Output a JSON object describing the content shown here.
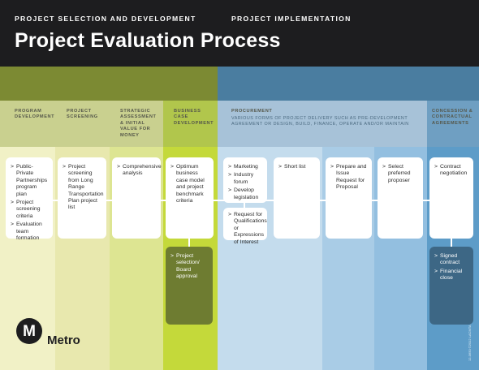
{
  "title": "Project Evaluation Process",
  "sections": {
    "selection": "PROJECT SELECTION AND DEVELOPMENT",
    "implementation": "PROJECT IMPLEMENTATION"
  },
  "columns": {
    "program_development": "PROGRAM DEVELOPMENT",
    "project_screening": "PROJECT SCREENING",
    "strategic_assessment": "STRATEGIC ASSESSMENT & INITIAL VALUE FOR MONEY",
    "business_case": "BUSINESS CASE DEVELOPMENT",
    "procurement": "PROCUREMENT",
    "procurement_sub": "VARIOUS FORMS OF PROJECT DELIVERY SUCH AS PRE-DEVELOPMENT AGREEMENT OR DESIGN, BUILD, FINANCE, OPERATE AND/OR MAINTAIN",
    "concession": "CONCESSION & CONTRACTUAL AGREEMENTS"
  },
  "arrow": ">",
  "steps": {
    "program": [
      "Public-Private Partnerships program plan",
      "Project screening criteria",
      "Evaluation team formation"
    ],
    "screening": [
      "Project screening from Long Range Transportation Plan project list"
    ],
    "strategic": [
      "Comprehensive analysis"
    ],
    "business": [
      "Optimum business case model and project benchmark criteria"
    ],
    "business_outcome": [
      "Project selection/ Board approval"
    ],
    "marketing": [
      "Marketing",
      "Industry forum",
      "Develop legislation"
    ],
    "qualifications": [
      "Request for Qualifications or Expressions of Interest"
    ],
    "short_list": [
      "Short list"
    ],
    "proposal": [
      "Prepare and Issue Request for Proposal"
    ],
    "proposer": [
      "Select preferred proposer"
    ],
    "contract": [
      "Contract negotiation"
    ],
    "contract_outcome": [
      "Signed contract",
      "Financial close"
    ]
  },
  "logo": {
    "wordmark": "Metro",
    "letter": "M"
  },
  "credit": "12-0650 ©2012 LACMTA"
}
